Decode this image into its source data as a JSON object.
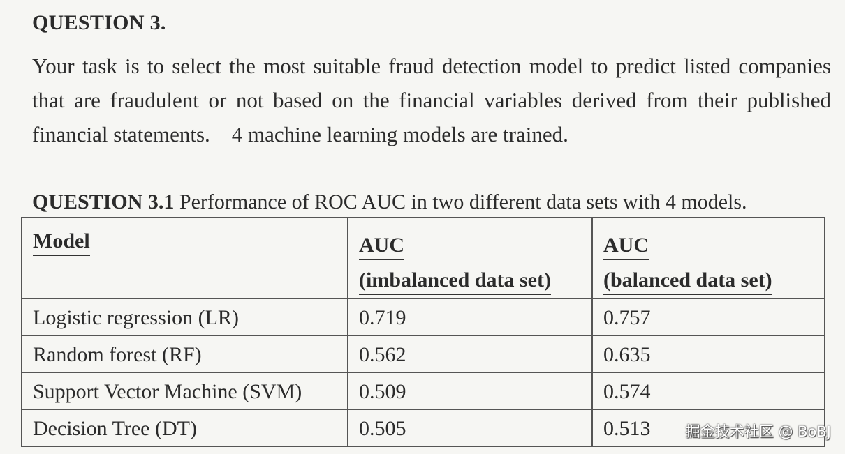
{
  "question": {
    "heading": "QUESTION 3.",
    "body": "Your task is to select the most suitable fraud detection model to predict listed companies that are fraudulent or not based on the financial variables derived from their published financial statements.    4 machine learning models are trained."
  },
  "subquestion": {
    "label": "QUESTION 3.1",
    "text": " Performance of ROC AUC in two different data sets with 4 models."
  },
  "table": {
    "headers": {
      "model": "Model",
      "col2_line1": "AUC",
      "col2_line2": "(imbalanced data set)",
      "col3_line1": "AUC",
      "col3_line2": "(balanced data set)"
    },
    "rows": [
      {
        "model": "Logistic regression (LR)",
        "imbalanced": "0.719",
        "balanced": "0.757"
      },
      {
        "model": "Random forest (RF)",
        "imbalanced": "0.562",
        "balanced": "0.635"
      },
      {
        "model": "Support Vector Machine (SVM)",
        "imbalanced": "0.509",
        "balanced": "0.574"
      },
      {
        "model": "Decision Tree (DT)",
        "imbalanced": "0.505",
        "balanced": "0.513"
      }
    ]
  },
  "watermark": "掘金技术社区 @ BoBJ"
}
